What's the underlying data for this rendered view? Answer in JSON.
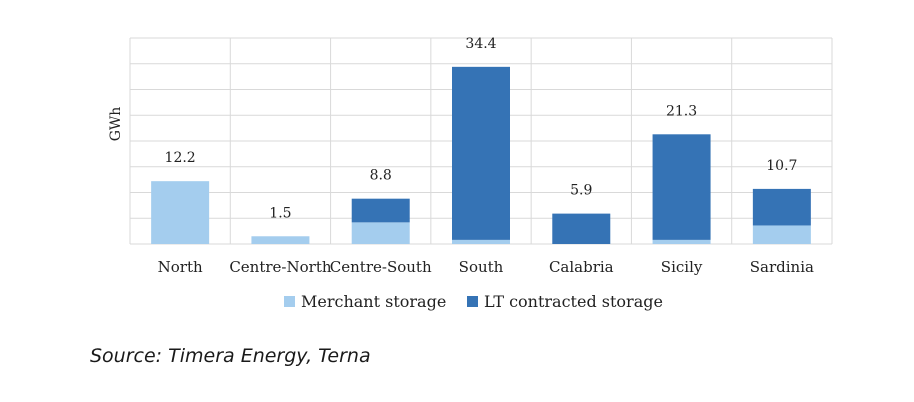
{
  "chart_data": {
    "type": "bar",
    "stacked": true,
    "categories": [
      "North",
      "Centre-North",
      "Centre-South",
      "South",
      "Calabria",
      "Sicily",
      "Sardinia"
    ],
    "series": [
      {
        "name": "Merchant storage",
        "color": "#a4cdee",
        "values": [
          12.2,
          1.5,
          4.2,
          0.8,
          0.0,
          0.8,
          3.6
        ]
      },
      {
        "name": "LT contracted storage",
        "color": "#3573b5",
        "values": [
          0.0,
          0.0,
          4.6,
          33.6,
          5.9,
          20.5,
          7.1
        ]
      }
    ],
    "totals": [
      "12.2",
      "1.5",
      "8.8",
      "34.4",
      "5.9",
      "21.3",
      "10.7"
    ],
    "ylabel": "GWh",
    "ylim": [
      0,
      40
    ],
    "yticks": [
      0,
      5,
      10,
      15,
      20,
      25,
      30,
      35,
      40
    ],
    "grid": true,
    "legend": "bottom"
  },
  "source": "Source: Timera Energy, Terna"
}
